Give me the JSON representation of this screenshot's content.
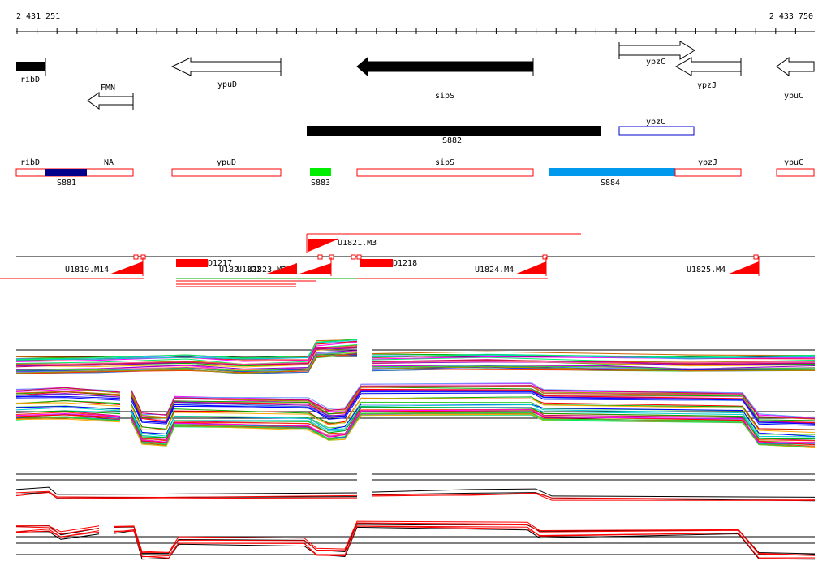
{
  "ruler": {
    "start_label": "2 431 251",
    "end_label": "2 433 750"
  },
  "colors": {
    "gene_fill": "#000000",
    "gene_open": "#ffffff",
    "region_border": "#ff0000",
    "s881": "#00008b",
    "s883": "#00ee00",
    "s884": "#0099ee",
    "ypzc_border": "#0000cc",
    "marker": "#ff0000"
  },
  "genes": [
    {
      "name": "ribD",
      "strand": "+",
      "filled": true
    },
    {
      "name": "ypuD",
      "strand": "-",
      "filled": false
    },
    {
      "name": "sipS",
      "strand": "-",
      "filled": true
    },
    {
      "name": "ypzC",
      "strand": "+",
      "filled": false
    },
    {
      "name": "ypzJ",
      "strand": "-",
      "filled": false
    },
    {
      "name": "ypuC",
      "strand": "-",
      "filled": false
    },
    {
      "name": "FMN",
      "strand": "-",
      "filled": false
    }
  ],
  "features": [
    {
      "name": "S882",
      "style": "filled"
    },
    {
      "name": "ypzC",
      "style": "outline"
    }
  ],
  "regions": [
    {
      "name": "ribD"
    },
    {
      "name": "NA"
    },
    {
      "name": "ypuD"
    },
    {
      "name": "sipS"
    },
    {
      "name": "ypzJ"
    },
    {
      "name": "ypuC"
    }
  ],
  "segments": [
    {
      "name": "S881"
    },
    {
      "name": "S883"
    },
    {
      "name": "S884"
    }
  ],
  "transcripts": [
    {
      "name": "U1819.M14"
    },
    {
      "name": "U1821.M3"
    },
    {
      "name": "U1822.M1"
    },
    {
      "name": "U1823.M2"
    },
    {
      "name": "U1824.M4"
    },
    {
      "name": "U1825.M4"
    },
    {
      "name": "D1217"
    },
    {
      "name": "D1218"
    },
    {
      "name": "U182"
    },
    {
      "name": "U1822"
    }
  ]
}
